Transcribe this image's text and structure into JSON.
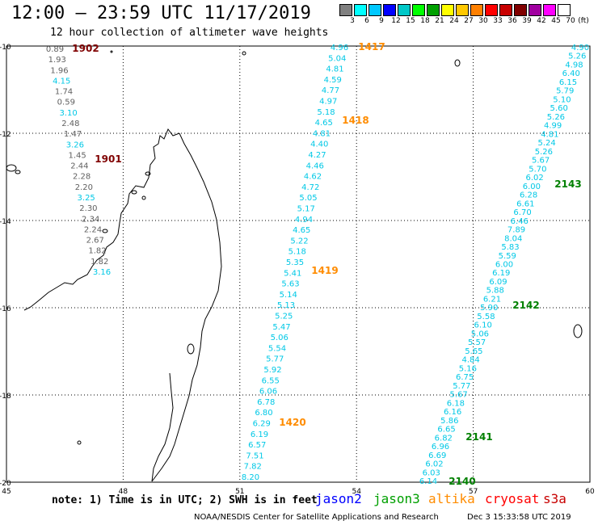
{
  "title": "12:00 – 23:59 UTC 11/17/2019",
  "subtitle": "12 hour collection of altimeter wave heights",
  "legend": {
    "colors": [
      "#808080",
      "#00ffff",
      "#00c8ff",
      "#0000ff",
      "#00c8c8",
      "#00ff00",
      "#00a000",
      "#ffff00",
      "#ffc800",
      "#ff8000",
      "#ff0000",
      "#c80000",
      "#800000",
      "#a000a0",
      "#ff00ff",
      "#ffffff"
    ],
    "labels": [
      "3",
      "6",
      "9",
      "12",
      "15",
      "18",
      "21",
      "24",
      "27",
      "30",
      "33",
      "36",
      "39",
      "42",
      "45",
      "70"
    ],
    "unit": "(ft)"
  },
  "map": {
    "lon_range": [
      45,
      60
    ],
    "lat_range": [
      -20,
      -10
    ],
    "lon_ticks": [
      "45",
      "48",
      "51",
      "54",
      "57",
      "60"
    ],
    "lat_ticks": [
      "-10",
      "-12",
      "-14",
      "-16",
      "-18",
      "-20"
    ]
  },
  "colors": {
    "grey_track": "#505050",
    "cyan_track": "#00c8e6",
    "orange_time": "#ff8c00",
    "green_time": "#008000",
    "darkred_time": "#800000"
  },
  "tracks": [
    {
      "name": "1902-1901",
      "color": "mixed",
      "points": [
        {
          "v": "0.89",
          "c": "#606060"
        },
        {
          "v": "1.93",
          "c": "#606060"
        },
        {
          "v": "1.96",
          "c": "#606060"
        },
        {
          "v": "4.15",
          "c": "#00c8e6"
        },
        {
          "v": "1.74",
          "c": "#606060"
        },
        {
          "v": "0.59",
          "c": "#606060"
        },
        {
          "v": "3.10",
          "c": "#00c8e6"
        },
        {
          "v": "2.48",
          "c": "#606060"
        },
        {
          "v": "1.47",
          "c": "#606060"
        },
        {
          "v": "3.26",
          "c": "#00c8e6"
        },
        {
          "v": "1.45",
          "c": "#606060"
        },
        {
          "v": "2.44",
          "c": "#606060"
        },
        {
          "v": "2.28",
          "c": "#606060"
        },
        {
          "v": "2.20",
          "c": "#606060"
        },
        {
          "v": "3.25",
          "c": "#00c8e6"
        },
        {
          "v": "2.30",
          "c": "#606060"
        },
        {
          "v": "2.34",
          "c": "#606060"
        },
        {
          "v": "2.24",
          "c": "#606060"
        },
        {
          "v": "2.67",
          "c": "#606060"
        },
        {
          "v": "1.82",
          "c": "#606060"
        },
        {
          "v": "1.82",
          "c": "#606060"
        },
        {
          "v": "3.16",
          "c": "#00c8e6"
        }
      ]
    },
    {
      "name": "1417-1420",
      "points": [
        "4.96",
        "5.04",
        "4.81",
        "4.59",
        "4.77",
        "4.97",
        "5.18",
        "4.65",
        "4.81",
        "4.40",
        "4.27",
        "4.46",
        "4.62",
        "4.72",
        "5.05",
        "5.17",
        "4.94",
        "4.65",
        "5.22",
        "5.18",
        "5.35",
        "5.41",
        "5.63",
        "5.14",
        "5.13",
        "5.25",
        "5.47",
        "5.06",
        "5.54",
        "5.77",
        "5.92",
        "6.55",
        "6.06",
        "6.78",
        "6.80",
        "6.29",
        "6.19",
        "6.57",
        "7.51",
        "7.82",
        "8.20"
      ]
    },
    {
      "name": "2143-2140",
      "points": [
        "4.90",
        "5.26",
        "4.98",
        "6.40",
        "6.15",
        "5.79",
        "5.10",
        "5.60",
        "5.26",
        "4.99",
        "4.81",
        "5.24",
        "5.26",
        "5.67",
        "5.70",
        "6.02",
        "6.00",
        "6.28",
        "6.61",
        "6.70",
        "6.46",
        "7.89",
        "8.04",
        "5.83",
        "5.59",
        "6.00",
        "6.19",
        "6.09",
        "5.88",
        "6.21",
        "5.90",
        "5.58",
        "6.10",
        "5.06",
        "5.57",
        "5.65",
        "4.84",
        "5.16",
        "6.75",
        "5.77",
        "5.67",
        "6.18",
        "6.16",
        "5.86",
        "6.65",
        "6.82",
        "6.96",
        "6.69",
        "6.02",
        "6.03",
        "6.14"
      ]
    }
  ],
  "time_labels": [
    {
      "text": "1902",
      "color": "#800000"
    },
    {
      "text": "1901",
      "color": "#800000"
    },
    {
      "text": "1417",
      "color": "#ff8c00"
    },
    {
      "text": "1418",
      "color": "#ff8c00"
    },
    {
      "text": "1419",
      "color": "#ff8c00"
    },
    {
      "text": "1420",
      "color": "#ff8c00"
    },
    {
      "text": "2143",
      "color": "#008000"
    },
    {
      "text": "2142",
      "color": "#008000"
    },
    {
      "text": "2141",
      "color": "#008000"
    },
    {
      "text": "2140",
      "color": "#008000"
    }
  ],
  "note": "note: 1) Time is in UTC; 2) SWH is in feet",
  "satellites": [
    {
      "name": "jason2",
      "color": "#0000ff"
    },
    {
      "name": "jason3",
      "color": "#00a000"
    },
    {
      "name": "altika",
      "color": "#ff8c00"
    },
    {
      "name": "cryosat",
      "color": "#ff0000"
    },
    {
      "name": "s3a",
      "color": "#c80000"
    }
  ],
  "credit": "NOAA/NESDIS Center for Satellite Applications and Research",
  "stamp": "Dec  3 15:33:58 UTC 2019"
}
